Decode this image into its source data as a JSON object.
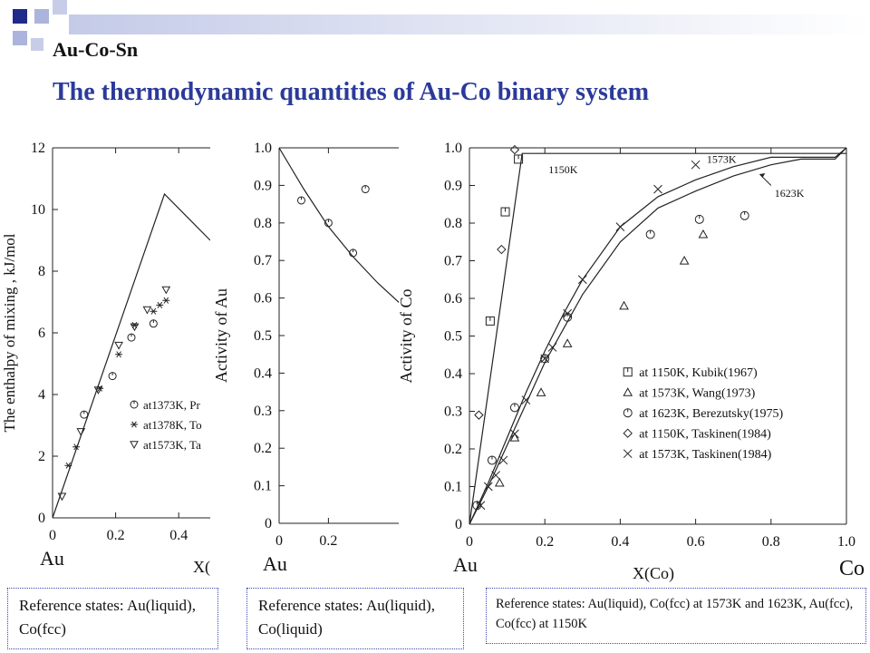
{
  "header": {
    "subtitle": "Au-Co-Sn",
    "title": "The thermodynamic quantities of Au-Co binary system"
  },
  "colors": {
    "title": "#2b3a9a",
    "deco_dark": "#1f2a8a",
    "deco_light": "#aab4dd",
    "line": "#222222",
    "ref_border": "#3a4bb0"
  },
  "refs": [
    "Reference states: Au(liquid), Co(fcc)",
    "Reference states: Au(liquid), Co(liquid)",
    "Reference states: Au(liquid), Co(fcc) at 1573K and 1623K, Au(fcc), Co(fcc) at 1150K"
  ],
  "chart_data": [
    {
      "type": "scatter",
      "ylabel": "The enthalpy of mixing , kJ/mol",
      "xlabel": "X(",
      "left_label": "Au",
      "xlim": [
        0,
        0.5
      ],
      "ylim": [
        0,
        12
      ],
      "xticks": [
        0,
        0.2,
        0.4
      ],
      "xtick_labels": [
        "0",
        "0.2",
        "0.4"
      ],
      "yticks": [
        0,
        2,
        4,
        6,
        8,
        10,
        12
      ],
      "ytick_labels": [
        "0",
        "2",
        "4",
        "6",
        "8",
        "10",
        "12"
      ],
      "lines": [
        {
          "x": [
            0,
            0.355,
            0.5
          ],
          "y": [
            0,
            10.5,
            9.0
          ]
        }
      ],
      "series": [
        {
          "name": "at1373K, Pr",
          "marker": "circle",
          "x": [
            0.1,
            0.19,
            0.25,
            0.32
          ],
          "y": [
            3.35,
            4.6,
            5.85,
            6.3
          ]
        },
        {
          "name": "at1378K, To",
          "marker": "star",
          "x": [
            0.05,
            0.075,
            0.15,
            0.21,
            0.26,
            0.32,
            0.34,
            0.36
          ],
          "y": [
            1.7,
            2.3,
            4.2,
            5.3,
            6.25,
            6.7,
            6.9,
            7.05
          ]
        },
        {
          "name": "at1573K, Ta",
          "marker": "triangle-down",
          "x": [
            0.03,
            0.09,
            0.145,
            0.21,
            0.26,
            0.3,
            0.36
          ],
          "y": [
            0.7,
            2.8,
            4.15,
            5.6,
            6.2,
            6.75,
            7.4
          ]
        }
      ]
    },
    {
      "type": "scatter",
      "ylabel": "Activity of Au",
      "left_label": "Au",
      "xlim": [
        0,
        0.5
      ],
      "ylim": [
        0,
        1.0
      ],
      "xticks": [
        0,
        0.2
      ],
      "xtick_labels": [
        "0",
        "0.2"
      ],
      "yticks": [
        0,
        0.1,
        0.2,
        0.3,
        0.4,
        0.5,
        0.6,
        0.7,
        0.8,
        0.9,
        1.0
      ],
      "ytick_labels": [
        "0",
        "0.1",
        "0.2",
        "0.3",
        "0.4",
        "0.5",
        "0.6",
        "0.7",
        "0.8",
        "0.9",
        "1.0"
      ],
      "lines": [
        {
          "x": [
            0,
            0.1,
            0.2,
            0.3,
            0.4,
            0.5
          ],
          "y": [
            1.0,
            0.89,
            0.79,
            0.71,
            0.64,
            0.58
          ]
        }
      ],
      "series": [
        {
          "name": "",
          "marker": "circle",
          "x": [
            0.09,
            0.2,
            0.3,
            0.35
          ],
          "y": [
            0.86,
            0.8,
            0.72,
            0.89
          ]
        }
      ]
    },
    {
      "type": "scatter",
      "ylabel": "Activity of  Co",
      "xlabel": "X(Co)",
      "left_label": "Au",
      "right_label": "Co",
      "xlim": [
        0,
        1.0
      ],
      "ylim": [
        0,
        1.0
      ],
      "xticks": [
        0,
        0.2,
        0.4,
        0.6,
        0.8,
        1.0
      ],
      "xtick_labels": [
        "0",
        "0.2",
        "0.4",
        "0.6",
        "0.8",
        "1.0"
      ],
      "yticks": [
        0,
        0.1,
        0.2,
        0.3,
        0.4,
        0.5,
        0.6,
        0.7,
        0.8,
        0.9,
        1.0
      ],
      "ytick_labels": [
        "0",
        "0.1",
        "0.2",
        "0.3",
        "0.4",
        "0.5",
        "0.6",
        "0.7",
        "0.8",
        "0.9",
        "1.0"
      ],
      "lines": [
        {
          "label": "1150K",
          "x": [
            0,
            0.14,
            1.0
          ],
          "y": [
            0,
            0.985,
            0.985
          ]
        },
        {
          "label": "1573K",
          "x": [
            0,
            0.05,
            0.1,
            0.15,
            0.2,
            0.25,
            0.3,
            0.4,
            0.5,
            0.6,
            0.7,
            0.8,
            0.85,
            0.97,
            1.0
          ],
          "y": [
            0,
            0.11,
            0.23,
            0.35,
            0.46,
            0.56,
            0.65,
            0.79,
            0.87,
            0.915,
            0.95,
            0.975,
            0.975,
            0.975,
            1.0
          ]
        },
        {
          "label": "1623K",
          "x": [
            0,
            0.05,
            0.1,
            0.15,
            0.2,
            0.25,
            0.3,
            0.4,
            0.5,
            0.6,
            0.7,
            0.8,
            0.88,
            0.97,
            1.0
          ],
          "y": [
            0,
            0.1,
            0.21,
            0.32,
            0.43,
            0.52,
            0.61,
            0.75,
            0.84,
            0.885,
            0.925,
            0.955,
            0.97,
            0.97,
            1.0
          ]
        }
      ],
      "annotations": [
        "1150K",
        "1573K",
        "1623K"
      ],
      "series": [
        {
          "name": "at 1150K, Kubik(1967)",
          "marker": "square",
          "x": [
            0.055,
            0.095,
            0.13
          ],
          "y": [
            0.54,
            0.83,
            0.97
          ]
        },
        {
          "name": "at 1573K, Wang(1973)",
          "marker": "triangle",
          "x": [
            0.08,
            0.12,
            0.19,
            0.26,
            0.41,
            0.57,
            0.62
          ],
          "y": [
            0.11,
            0.23,
            0.35,
            0.48,
            0.58,
            0.7,
            0.77
          ]
        },
        {
          "name": "at 1623K, Berezutsky(1975)",
          "marker": "circle",
          "x": [
            0.02,
            0.06,
            0.12,
            0.2,
            0.26,
            0.48,
            0.61,
            0.73
          ],
          "y": [
            0.05,
            0.17,
            0.31,
            0.44,
            0.55,
            0.77,
            0.81,
            0.82
          ]
        },
        {
          "name": "at 1150K, Taskinen(1984)",
          "marker": "diamond",
          "x": [
            0.025,
            0.085,
            0.12
          ],
          "y": [
            0.29,
            0.73,
            0.995
          ]
        },
        {
          "name": "at 1573K, Taskinen(1984)",
          "marker": "x",
          "x": [
            0.03,
            0.05,
            0.07,
            0.09,
            0.12,
            0.15,
            0.2,
            0.22,
            0.26,
            0.3,
            0.4,
            0.5,
            0.6
          ],
          "y": [
            0.05,
            0.1,
            0.13,
            0.17,
            0.24,
            0.33,
            0.44,
            0.47,
            0.56,
            0.65,
            0.79,
            0.89,
            0.955
          ]
        }
      ]
    }
  ]
}
